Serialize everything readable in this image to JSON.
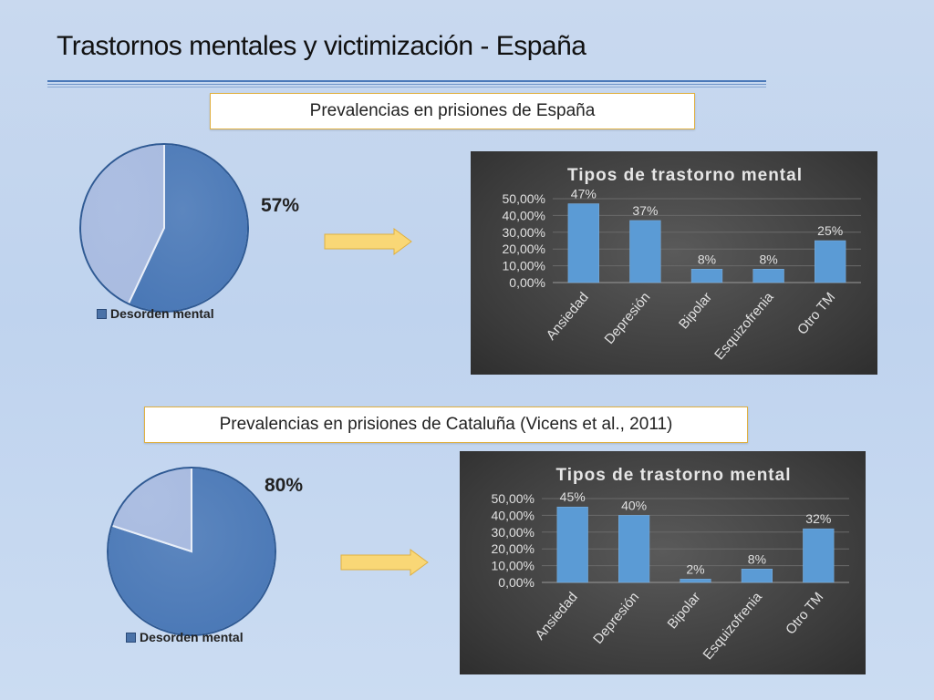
{
  "slide": {
    "title": "Trastornos mentales y victimización - España"
  },
  "sections": [
    {
      "label": "Prevalencias en prisiones de España",
      "pie_percent_label": "57%",
      "pie_legend": "Desorden mental"
    },
    {
      "label": "Prevalencias en prisiones de Cataluña (Vicens et al., 2011)",
      "pie_percent_label": "80%",
      "pie_legend": "Desorden mental"
    }
  ],
  "colors": {
    "pie_main": "#4a78b6",
    "pie_rest": "#a9bbe0",
    "bar": "#5b9bd5",
    "arrow": "#f9d776"
  },
  "chart_data": [
    {
      "type": "pie",
      "categories": [
        "Desorden mental",
        ""
      ],
      "values": [
        57,
        43
      ],
      "legend": [
        "Desorden mental"
      ],
      "data_labels": [
        "57%"
      ]
    },
    {
      "type": "bar",
      "title": "Tipos de trastorno mental",
      "categories": [
        "Ansiedad",
        "Depresión",
        "Bipolar",
        "Esquizofrenia",
        "Otro TM"
      ],
      "values": [
        47,
        37,
        8,
        8,
        25
      ],
      "data_labels": [
        "47%",
        "37%",
        "8%",
        "8%",
        "25%"
      ],
      "yticks": [
        "0,00%",
        "10,00%",
        "20,00%",
        "30,00%",
        "40,00%",
        "50,00%"
      ],
      "ylim": [
        0,
        50
      ],
      "grid": true
    },
    {
      "type": "pie",
      "categories": [
        "Desorden mental",
        ""
      ],
      "values": [
        80,
        20
      ],
      "legend": [
        "Desorden mental"
      ],
      "data_labels": [
        "80%"
      ]
    },
    {
      "type": "bar",
      "title": "Tipos de trastorno mental",
      "categories": [
        "Ansiedad",
        "Depresión",
        "Bipolar",
        "Esquizofrenia",
        "Otro TM"
      ],
      "values": [
        45,
        40,
        2,
        8,
        32
      ],
      "data_labels": [
        "45%",
        "40%",
        "2%",
        "8%",
        "32%"
      ],
      "yticks": [
        "0,00%",
        "10,00%",
        "20,00%",
        "30,00%",
        "40,00%",
        "50,00%"
      ],
      "ylim": [
        0,
        50
      ],
      "grid": true
    }
  ]
}
